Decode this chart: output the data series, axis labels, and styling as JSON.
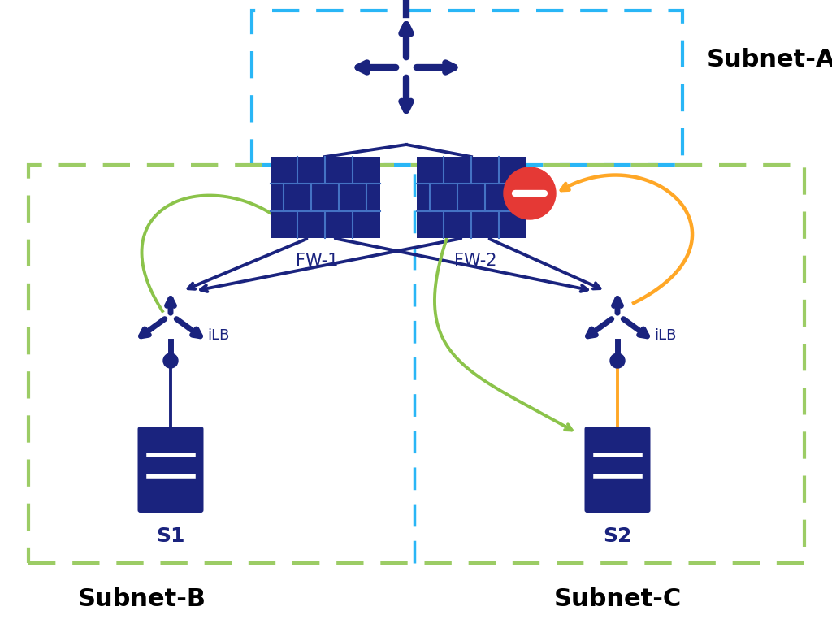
{
  "bg_color": "#ffffff",
  "dark_blue": "#1a237e",
  "light_blue_dash": "#29b6f6",
  "green_dash": "#9ccc65",
  "red": "#e53935",
  "orange": "#ffa726",
  "green_arrow": "#8bc34a",
  "subnet_a_label": "Subnet-A",
  "subnet_b_label": "Subnet-B",
  "subnet_c_label": "Subnet-C",
  "fw1_label": "FW-1",
  "fw2_label": "FW-2",
  "ilb_label": "iLB",
  "s1_label": "S1",
  "s2_label": "S2",
  "label_fontsize": 22,
  "sublabel_fontsize": 18,
  "fw_label_fontsize": 15,
  "ilb_label_fontsize": 13
}
